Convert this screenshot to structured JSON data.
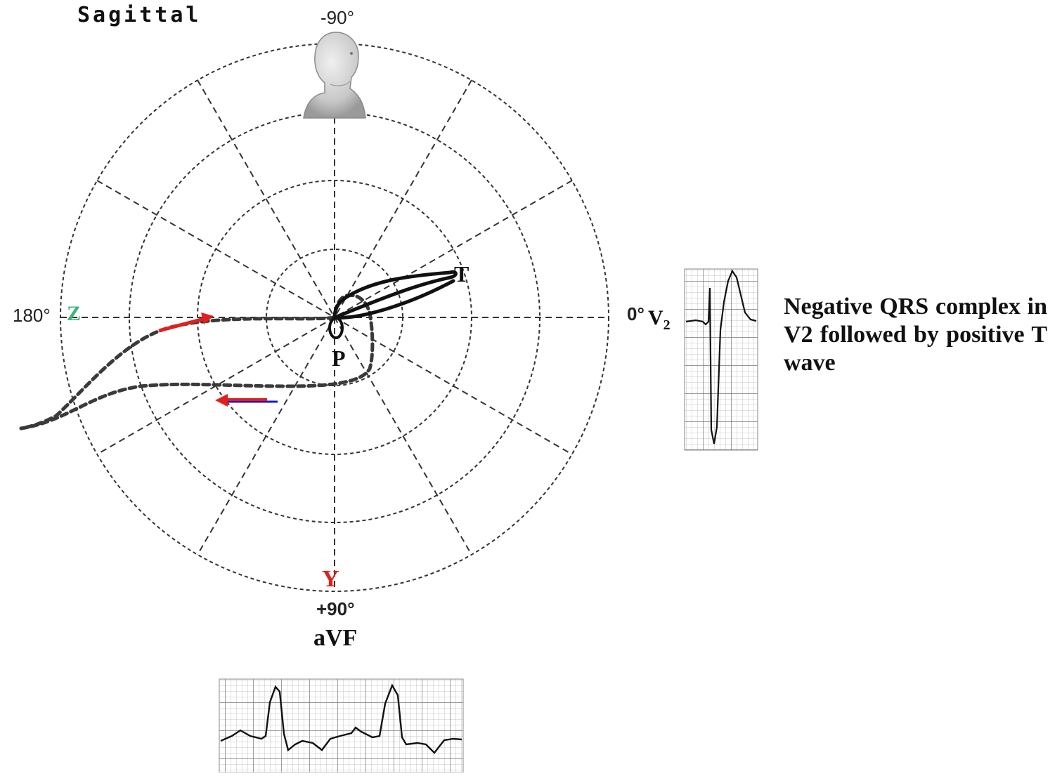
{
  "plane_title": "Sagittal",
  "angles": {
    "top": "-90°",
    "bottom": "+90°",
    "left": "180°",
    "right": "0°"
  },
  "axes": {
    "z": "Z",
    "y": "Y",
    "right_lead": "V",
    "right_lead_sub": "2",
    "bottom_lead": "aVF"
  },
  "loops": {
    "t": "T",
    "p": "P"
  },
  "caption": "Negative QRS complex in V2 followed by positive T wave",
  "colors": {
    "z_axis": "#3cb878",
    "y_axis": "#e0201e",
    "arrow_red": "#e0201e",
    "arrow_blue": "#1a1ac8",
    "grid": "#333333",
    "ecg_grid": "#9a9a9a"
  },
  "icons": {
    "head": "head-bust-icon"
  }
}
